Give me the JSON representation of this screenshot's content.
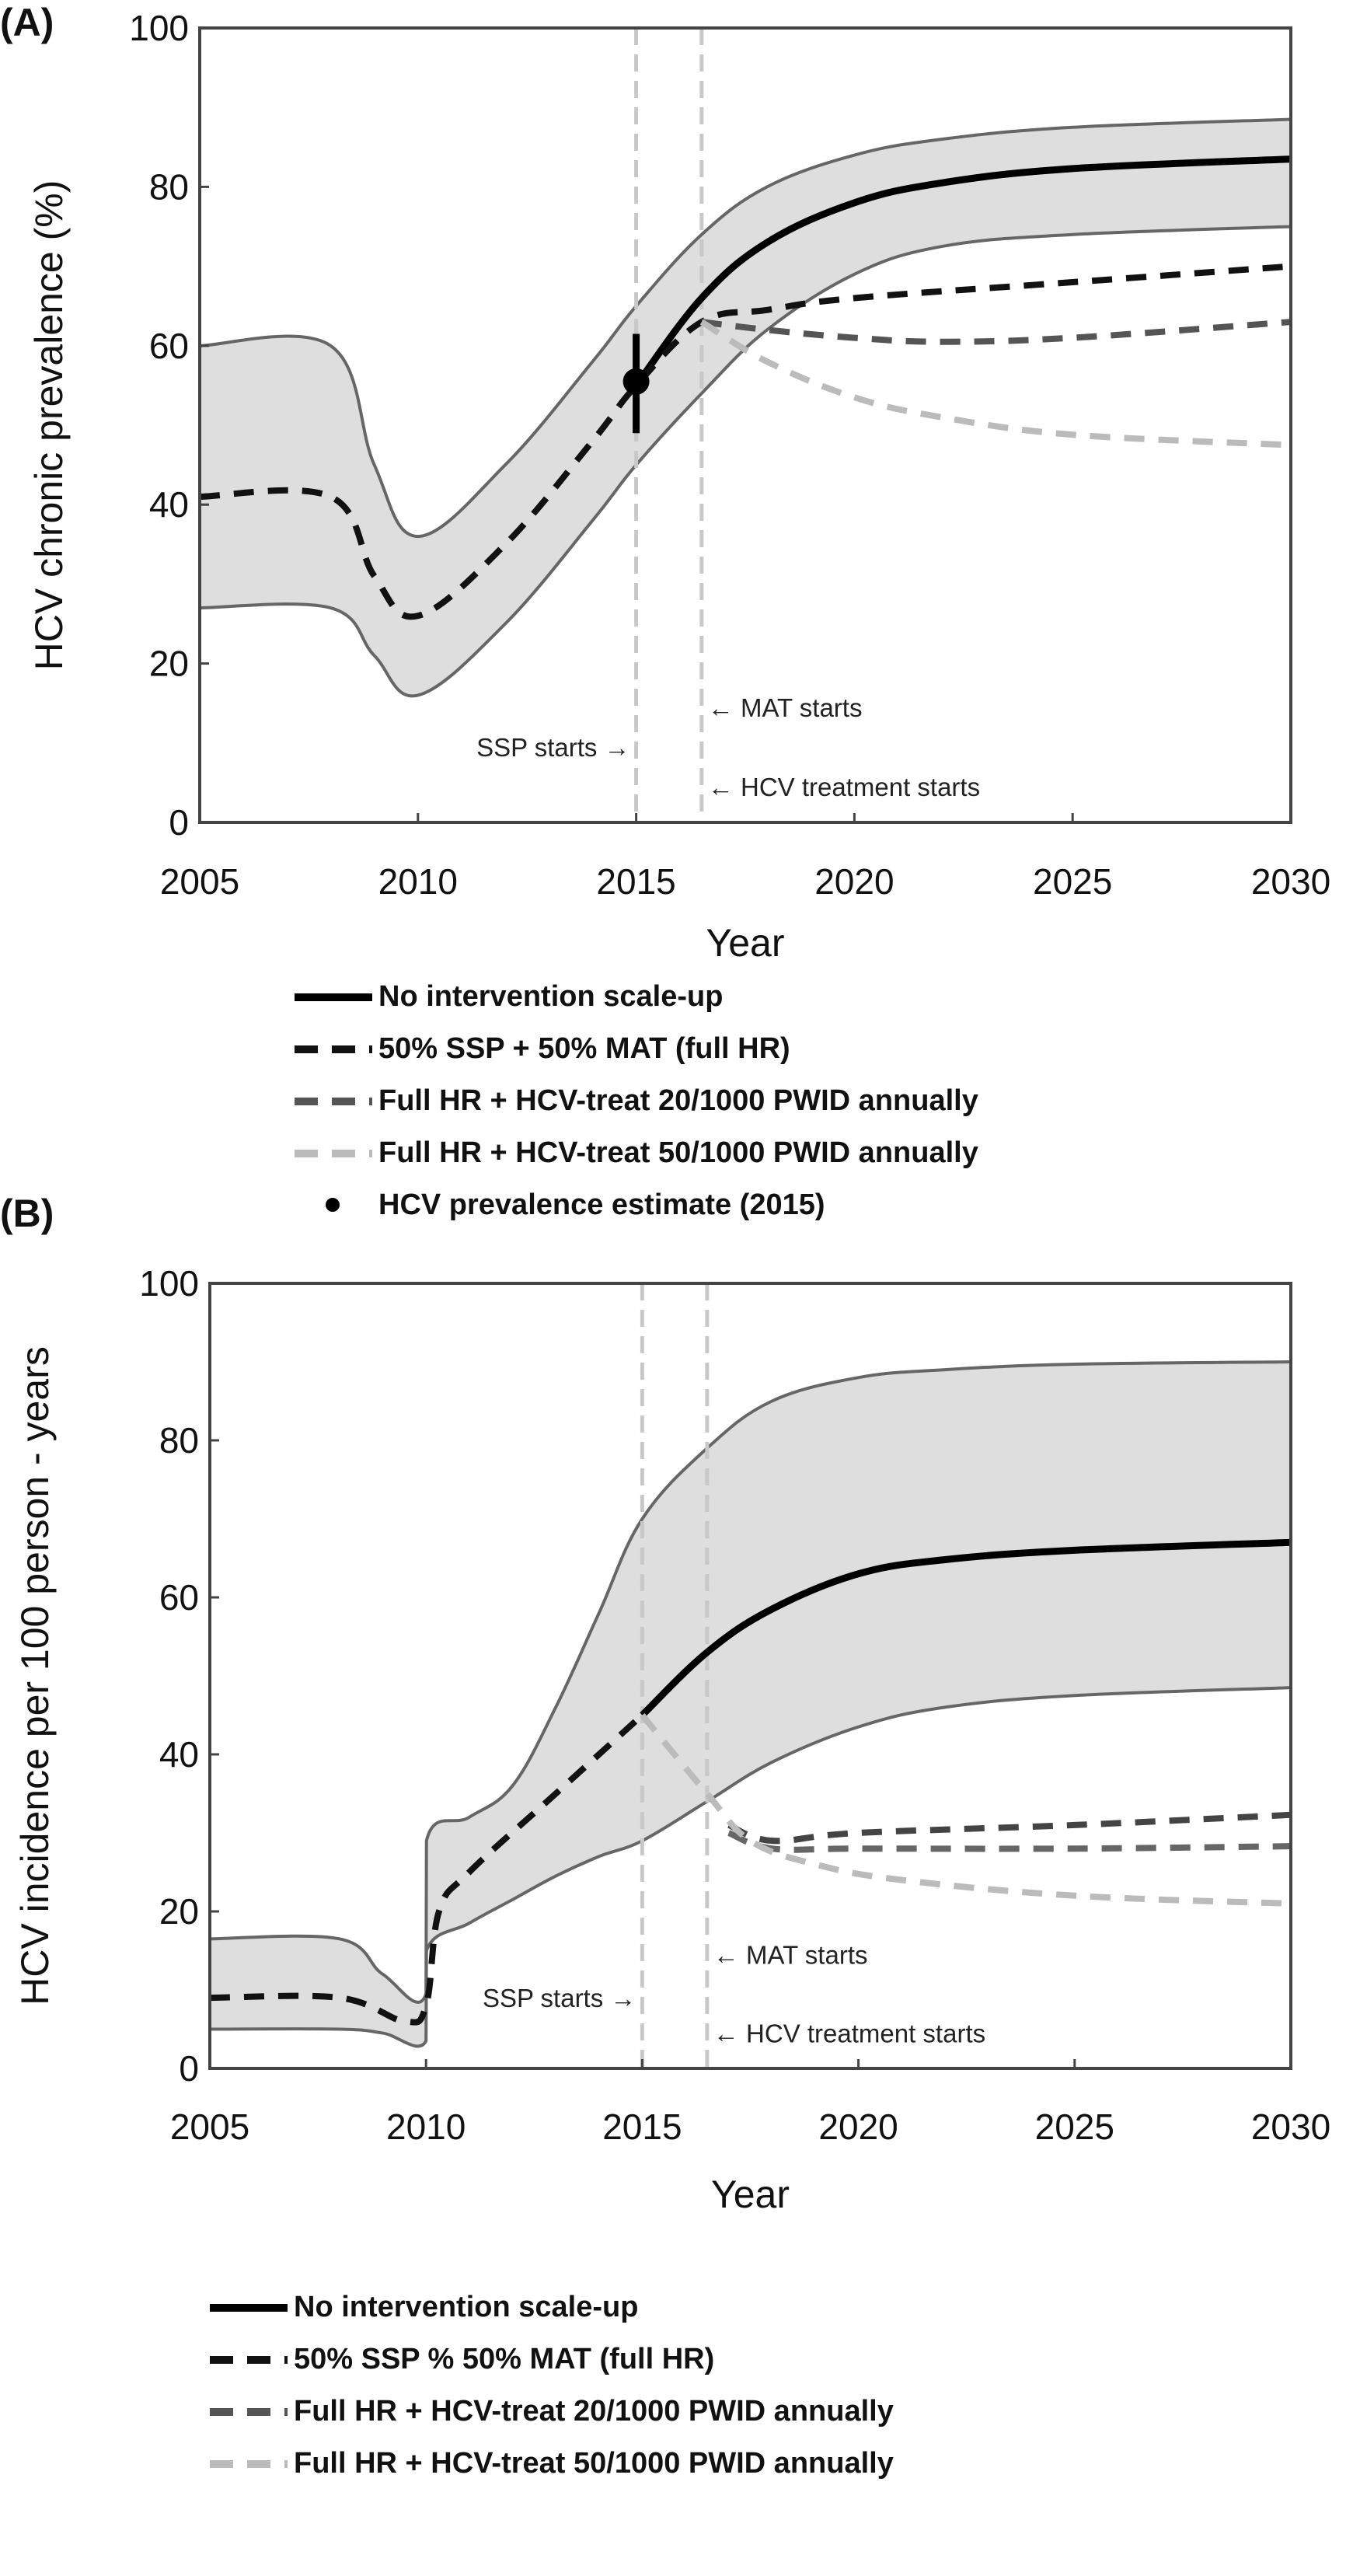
{
  "chart_data": [
    {
      "type": "line",
      "panel_label": "(A)",
      "xlabel": "Year",
      "ylabel": "HCV chronic prevalence (%)",
      "xlim": [
        2005,
        2030
      ],
      "ylim": [
        0,
        100
      ],
      "xticks": [
        "2005",
        "2010",
        "2015",
        "2020",
        "2025",
        "2030"
      ],
      "yticks": [
        "0",
        "20",
        "40",
        "60",
        "80",
        "100"
      ],
      "grid": false,
      "band": {
        "name": "Uncertainty interval",
        "x": [
          2005,
          2008,
          2009,
          2010,
          2012,
          2014,
          2015,
          2016.5,
          2018,
          2020,
          2022,
          2025,
          2030
        ],
        "upper": [
          60,
          60,
          45,
          36,
          45,
          58,
          65,
          74,
          80,
          84,
          86,
          87.5,
          88.5
        ],
        "lower": [
          27,
          27,
          21,
          16,
          25,
          38,
          45,
          54,
          62,
          69,
          72.5,
          74,
          75
        ]
      },
      "series": [
        {
          "name": "No intervention scale-up",
          "style": "solid",
          "color": "#000000",
          "x": [
            2015,
            2016.5,
            2018,
            2020,
            2022,
            2025,
            2030
          ],
          "y": [
            55,
            66,
            73,
            78,
            80.5,
            82.3,
            83.5
          ]
        },
        {
          "name": "50% SSP + 50% MAT (full HR)",
          "style": "dashed",
          "color": "#111111",
          "x": [
            2005,
            2008,
            2009,
            2010,
            2012,
            2014,
            2015,
            2016.5,
            2018,
            2020,
            2025,
            2030
          ],
          "y": [
            41,
            41,
            31,
            26,
            35,
            48,
            55,
            63,
            64.5,
            66,
            68,
            70
          ]
        },
        {
          "name": "Full HR + HCV-treat 20/1000 PWID annually",
          "style": "dashed",
          "color": "#555555",
          "x": [
            2016.5,
            2018,
            2020,
            2022,
            2025,
            2030
          ],
          "y": [
            63,
            62,
            61,
            60.5,
            61,
            63
          ]
        },
        {
          "name": "Full HR + HCV-treat 50/1000 PWID annually",
          "style": "dashed",
          "color": "#bbbbbb",
          "x": [
            2016.5,
            2018,
            2020,
            2022,
            2025,
            2030
          ],
          "y": [
            63,
            58,
            53.5,
            51,
            48.8,
            47.5
          ]
        }
      ],
      "point": {
        "name": "HCV prevalence estimate (2015)",
        "x": 2015,
        "y": 55.5,
        "ymin": 49,
        "ymax": 61.5
      },
      "vlines": [
        2015,
        2016.5
      ],
      "annotations": [
        {
          "text": "SSP starts →",
          "x": 2015,
          "y": 9.5,
          "side": "left"
        },
        {
          "text": "← MAT starts",
          "x": 2016.5,
          "y": 14.5,
          "side": "right"
        },
        {
          "text": "← HCV treatment starts",
          "x": 2016.5,
          "y": 4.5,
          "side": "right"
        }
      ],
      "legend": [
        "No intervention scale-up",
        "50% SSP + 50% MAT (full HR)",
        "Full HR + HCV-treat 20/1000 PWID annually",
        "Full HR + HCV-treat 50/1000 PWID annually",
        "HCV prevalence estimate (2015)"
      ],
      "legend_placement": "bottom"
    },
    {
      "type": "line",
      "panel_label": "(B)",
      "xlabel": "Year",
      "ylabel": "HCV incidence per 100 person - years",
      "xlim": [
        2005,
        2030
      ],
      "ylim": [
        0,
        100
      ],
      "xticks": [
        "2005",
        "2010",
        "2015",
        "2020",
        "2025",
        "2030"
      ],
      "yticks": [
        "0",
        "20",
        "40",
        "60",
        "80",
        "100"
      ],
      "grid": false,
      "band": {
        "name": "Uncertainty interval",
        "x": [
          2005,
          2008,
          2009,
          2010,
          2010.01,
          2011,
          2012,
          2013,
          2014,
          2015,
          2016.5,
          2018,
          2020,
          2022,
          2025,
          2030
        ],
        "upper": [
          16.5,
          16.5,
          12,
          9.5,
          29,
          32,
          36,
          46,
          58,
          70,
          79,
          85,
          88,
          89,
          89.7,
          90
        ],
        "lower": [
          5,
          5,
          4.5,
          3.5,
          15,
          18.5,
          21.5,
          24.5,
          27,
          29,
          34,
          39,
          43.5,
          46,
          47.5,
          48.5
        ]
      },
      "series": [
        {
          "name": "No intervention scale-up",
          "style": "solid",
          "color": "#000000",
          "x": [
            2015,
            2016.5,
            2018,
            2020,
            2022,
            2025,
            2030
          ],
          "y": [
            45,
            53,
            58.5,
            63,
            64.8,
            66,
            67
          ]
        },
        {
          "name": "50% SSP % 50% MAT (full HR)",
          "style": "dashed",
          "color": "#111111",
          "x": [
            2005,
            2008,
            2009.5,
            2010,
            2010.3,
            2011,
            2013,
            2015
          ],
          "y": [
            9,
            9,
            6,
            8,
            20,
            25,
            35,
            45
          ]
        },
        {
          "name": "Full HR + HCV-treat 20/1000 PWID annually",
          "style": "dashed",
          "color": "#444444",
          "x": [
            2017,
            2018,
            2020,
            2025,
            2030
          ],
          "y": [
            31,
            29,
            30,
            31,
            32.3
          ]
        },
        {
          "name": "Full HR + HCV-treat 50/1000 PWID annually",
          "style": "dashed",
          "color": "#666666",
          "x": [
            2017,
            2018,
            2020,
            2025,
            2030
          ],
          "y": [
            30,
            28,
            28,
            28,
            28.3
          ]
        },
        {
          "name": "Full HR + HCV-treat 50/1000 PWID annually (light)",
          "style": "dashed",
          "color": "#bbbbbb",
          "x": [
            2015,
            2016.5,
            2017.5,
            2019,
            2021,
            2025,
            2030
          ],
          "y": [
            45,
            35,
            29,
            26,
            24,
            22,
            21
          ]
        }
      ],
      "vlines": [
        2015,
        2016.5
      ],
      "annotations": [
        {
          "text": "SSP starts →",
          "x": 2015,
          "y": 9,
          "side": "left"
        },
        {
          "text": "← MAT starts",
          "x": 2016.5,
          "y": 14.5,
          "side": "right"
        },
        {
          "text": "← HCV treatment starts",
          "x": 2016.5,
          "y": 4.5,
          "side": "right"
        }
      ],
      "legend": [
        "No intervention scale-up",
        "50% SSP % 50% MAT (full HR)",
        "Full HR + HCV-treat 20/1000 PWID annually",
        "Full HR + HCV-treat 50/1000 PWID annually"
      ],
      "legend_placement": "bottom"
    }
  ],
  "legend_styles": {
    "no_intervention": {
      "style": "solid",
      "color": "#000000"
    },
    "ssp_mat": {
      "style": "dashed",
      "color": "#111111"
    },
    "treat20": {
      "style": "dashed",
      "color": "#555555"
    },
    "treat50": {
      "style": "dashed",
      "color": "#bbbbbb"
    },
    "band_fill": "#dedede",
    "band_edge": "#666666"
  }
}
